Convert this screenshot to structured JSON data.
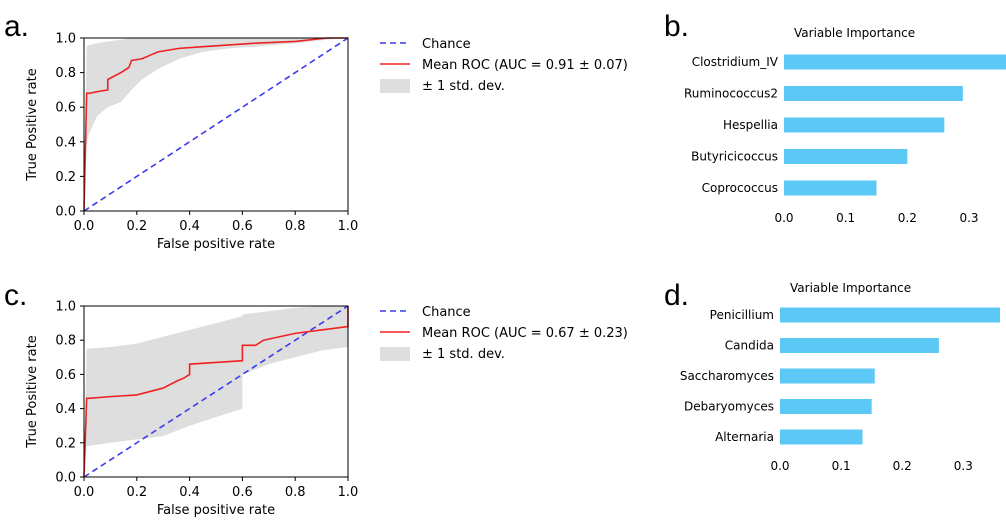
{
  "panels": {
    "a": "a.",
    "b": "b.",
    "c": "c.",
    "d": "d."
  },
  "colors": {
    "chance": "#3a3af0",
    "roc": "#ee2222",
    "band": "#dedede",
    "bar": "#5bc8f5"
  },
  "chart_data": [
    {
      "type": "line",
      "panel": "a",
      "xlabel": "False positive rate",
      "ylabel": "True Positive rate",
      "xlim": [
        0,
        1
      ],
      "ylim": [
        0,
        1
      ],
      "xticks": [
        "0.0",
        "0.2",
        "0.4",
        "0.6",
        "0.8",
        "1.0"
      ],
      "yticks": [
        "0.0",
        "0.2",
        "0.4",
        "0.6",
        "0.8",
        "1.0"
      ],
      "legend": {
        "chance": "Chance",
        "roc": "Mean ROC (AUC = 0.91 ± 0.07)",
        "band": "± 1 std. dev."
      },
      "series": [
        {
          "name": "Chance",
          "x": [
            0,
            1
          ],
          "y": [
            0,
            1
          ]
        },
        {
          "name": "Mean ROC (AUC = 0.91 ± 0.07)",
          "x": [
            0,
            0.01,
            0.02,
            0.05,
            0.09,
            0.09,
            0.14,
            0.17,
            0.18,
            0.22,
            0.25,
            0.28,
            0.36,
            0.45,
            0.55,
            0.65,
            0.8,
            0.92,
            1.0
          ],
          "y": [
            0,
            0.68,
            0.68,
            0.69,
            0.7,
            0.76,
            0.8,
            0.83,
            0.87,
            0.88,
            0.9,
            0.92,
            0.94,
            0.95,
            0.96,
            0.97,
            0.98,
            1.0,
            1.0
          ]
        }
      ],
      "band": {
        "name": "± 1 std. dev.",
        "x": [
          0,
          0.01,
          0.02,
          0.05,
          0.09,
          0.14,
          0.18,
          0.22,
          0.28,
          0.36,
          0.45,
          0.55,
          0.65,
          0.8,
          0.92,
          1.0
        ],
        "lower": [
          0,
          0.38,
          0.45,
          0.55,
          0.6,
          0.63,
          0.7,
          0.76,
          0.82,
          0.88,
          0.92,
          0.94,
          0.95,
          0.97,
          0.99,
          1.0
        ],
        "upper": [
          0,
          0.95,
          0.96,
          0.97,
          0.98,
          0.99,
          1.0,
          1.0,
          1.0,
          1.0,
          1.0,
          1.0,
          1.0,
          1.0,
          1.0,
          1.0
        ]
      }
    },
    {
      "type": "bar",
      "orientation": "horizontal",
      "panel": "b",
      "title": "Variable Importance",
      "categories": [
        "Clostridium_IV",
        "Ruminococcus2",
        "Hespellia",
        "Butyricicoccus",
        "Coprococcus"
      ],
      "values": [
        0.36,
        0.29,
        0.26,
        0.2,
        0.15
      ],
      "xticks": [
        "0.0",
        "0.1",
        "0.2",
        "0.3"
      ],
      "xlim": [
        0,
        0.36
      ]
    },
    {
      "type": "line",
      "panel": "c",
      "xlabel": "False positive rate",
      "ylabel": "True Positive rate",
      "xlim": [
        0,
        1
      ],
      "ylim": [
        0,
        1
      ],
      "xticks": [
        "0.0",
        "0.2",
        "0.4",
        "0.6",
        "0.8",
        "1.0"
      ],
      "yticks": [
        "0.0",
        "0.2",
        "0.4",
        "0.6",
        "0.8",
        "1.0"
      ],
      "legend": {
        "chance": "Chance",
        "roc": "Mean ROC (AUC = 0.67 ± 0.23)",
        "band": "± 1 std. dev."
      },
      "series": [
        {
          "name": "Chance",
          "x": [
            0,
            1
          ],
          "y": [
            0,
            1
          ]
        },
        {
          "name": "Mean ROC (AUC = 0.67 ± 0.23)",
          "x": [
            0,
            0.01,
            0.02,
            0.1,
            0.2,
            0.3,
            0.35,
            0.38,
            0.4,
            0.4,
            0.5,
            0.6,
            0.6,
            0.65,
            0.68,
            0.8,
            0.9,
            1.0,
            1.0
          ],
          "y": [
            0,
            0.46,
            0.46,
            0.47,
            0.48,
            0.52,
            0.56,
            0.58,
            0.6,
            0.66,
            0.67,
            0.68,
            0.77,
            0.77,
            0.8,
            0.84,
            0.86,
            0.88,
            1.0
          ]
        }
      ],
      "band": {
        "name": "± 1 std. dev.",
        "x": [
          0,
          0.01,
          0.1,
          0.2,
          0.3,
          0.4,
          0.5,
          0.6,
          0.6,
          0.7,
          0.8,
          0.9,
          1.0
        ],
        "lower": [
          0,
          0.18,
          0.2,
          0.22,
          0.24,
          0.3,
          0.35,
          0.4,
          0.6,
          0.66,
          0.7,
          0.74,
          0.76
        ],
        "upper": [
          0,
          0.75,
          0.76,
          0.78,
          0.82,
          0.86,
          0.9,
          0.94,
          0.95,
          0.97,
          0.99,
          1.0,
          1.0
        ]
      }
    },
    {
      "type": "bar",
      "orientation": "horizontal",
      "panel": "d",
      "title": "Variable Importance",
      "categories": [
        "Penicillium",
        "Candida",
        "Saccharomyces",
        "Debaryomyces",
        "Alternaria"
      ],
      "values": [
        0.36,
        0.26,
        0.155,
        0.15,
        0.135
      ],
      "xticks": [
        "0.0",
        "0.1",
        "0.2",
        "0.3"
      ],
      "xlim": [
        0,
        0.36
      ]
    }
  ]
}
